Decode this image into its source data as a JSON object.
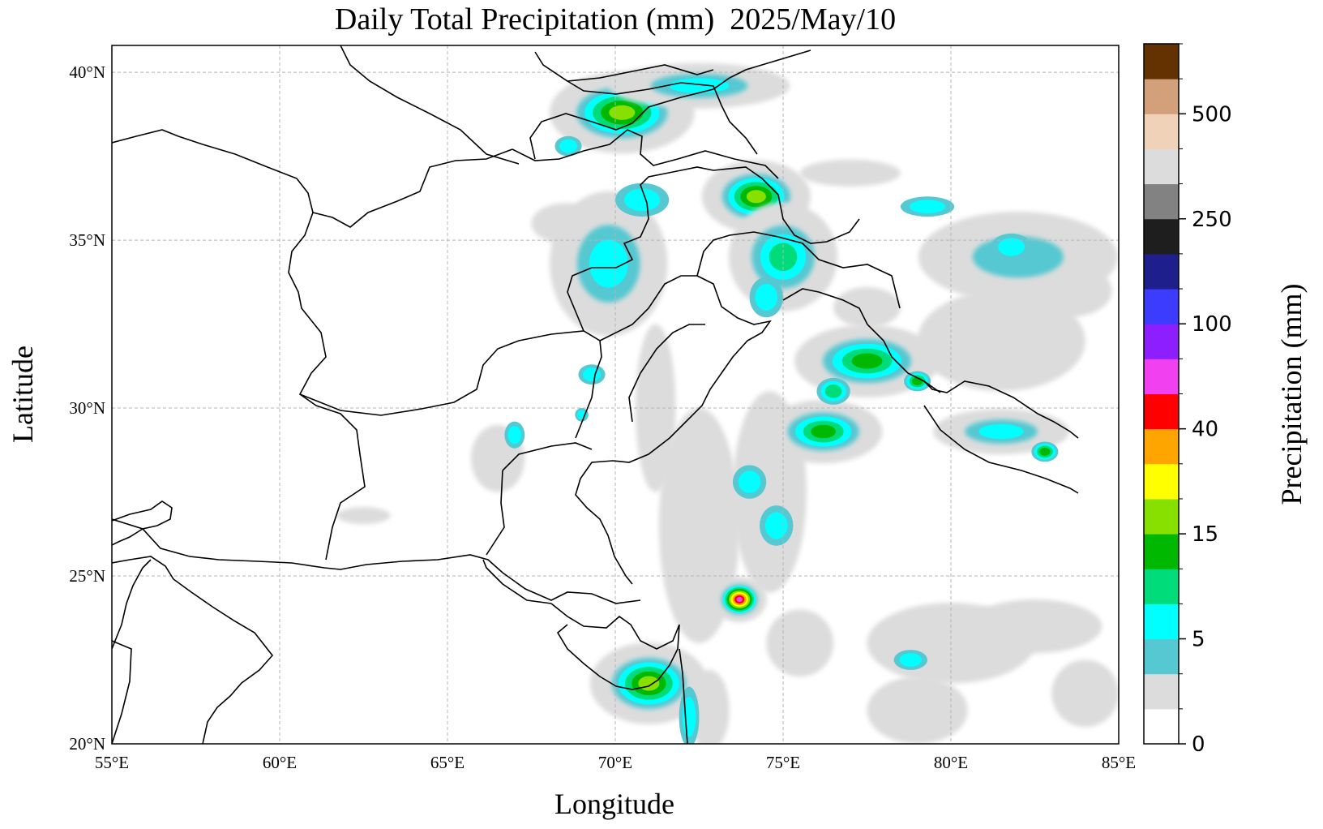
{
  "title": "Daily Total Precipitation (mm)  2025/May/10",
  "map": {
    "xlabel": "Longitude",
    "ylabel": "Latitude",
    "lon_range": [
      55,
      85
    ],
    "lat_range": [
      20,
      40.8
    ],
    "lon_ticks": [
      {
        "v": 55,
        "label": "55°E"
      },
      {
        "v": 60,
        "label": "60°E"
      },
      {
        "v": 65,
        "label": "65°E"
      },
      {
        "v": 70,
        "label": "70°E"
      },
      {
        "v": 75,
        "label": "75°E"
      },
      {
        "v": 80,
        "label": "80°E"
      },
      {
        "v": 85,
        "label": "85°E"
      }
    ],
    "lat_ticks": [
      {
        "v": 20,
        "label": "20°N"
      },
      {
        "v": 25,
        "label": "25°N"
      },
      {
        "v": 30,
        "label": "30°N"
      },
      {
        "v": 35,
        "label": "35°N"
      },
      {
        "v": 40,
        "label": "40°N"
      }
    ],
    "grid": true
  },
  "colorbar": {
    "label": "Precipitation (mm)",
    "colors": [
      "#ffffff",
      "#dcdcdc",
      "#55c8d2",
      "#00ffff",
      "#00dc7a",
      "#00b800",
      "#88e000",
      "#ffff00",
      "#ffa500",
      "#ff0000",
      "#f040f0",
      "#8c1eff",
      "#3c3cff",
      "#1e1e8c",
      "#1e1e1e",
      "#828282",
      "#dcdcdc",
      "#f0d2b9",
      "#d2a07a",
      "#643200"
    ],
    "ticks": [
      {
        "index": 0,
        "label": "0"
      },
      {
        "index": 3,
        "label": "5"
      },
      {
        "index": 6,
        "label": "15"
      },
      {
        "index": 9,
        "label": "40"
      },
      {
        "index": 12,
        "label": "100"
      },
      {
        "index": 15,
        "label": "250"
      },
      {
        "index": 18,
        "label": "500"
      }
    ]
  },
  "chart_data": {
    "type": "heatmap",
    "title": "Daily Total Precipitation (mm)  2025/May/10",
    "xlabel": "Longitude",
    "ylabel": "Latitude",
    "colorbar_label": "Precipitation (mm)",
    "xlim": [
      55,
      85
    ],
    "ylim": [
      20,
      40.8
    ],
    "levels_labeled": [
      0,
      5,
      15,
      40,
      100,
      250,
      500
    ],
    "rain_areas": [
      {
        "lon": 70.2,
        "lat": 38.8,
        "rx": 1.6,
        "ry": 0.9,
        "level": 6
      },
      {
        "lon": 72.5,
        "lat": 39.6,
        "rx": 2.0,
        "ry": 0.5,
        "level": 3
      },
      {
        "lon": 74.2,
        "lat": 36.3,
        "rx": 1.2,
        "ry": 0.8,
        "level": 6
      },
      {
        "lon": 75.0,
        "lat": 34.5,
        "rx": 1.2,
        "ry": 1.2,
        "level": 4
      },
      {
        "lon": 77.5,
        "lat": 31.4,
        "rx": 1.6,
        "ry": 0.8,
        "level": 5
      },
      {
        "lon": 76.2,
        "lat": 29.3,
        "rx": 1.3,
        "ry": 0.7,
        "level": 5
      },
      {
        "lon": 73.7,
        "lat": 24.3,
        "rx": 0.6,
        "ry": 0.5,
        "level": 10
      },
      {
        "lon": 71.0,
        "lat": 21.8,
        "rx": 1.3,
        "ry": 0.9,
        "level": 6
      },
      {
        "lon": 81.5,
        "lat": 29.3,
        "rx": 1.5,
        "ry": 0.5,
        "level": 3
      },
      {
        "lon": 69.8,
        "lat": 34.3,
        "rx": 1.3,
        "ry": 1.6,
        "level": 3
      },
      {
        "lon": 82.0,
        "lat": 34.5,
        "rx": 2.2,
        "ry": 1.0,
        "level": 2
      }
    ]
  }
}
